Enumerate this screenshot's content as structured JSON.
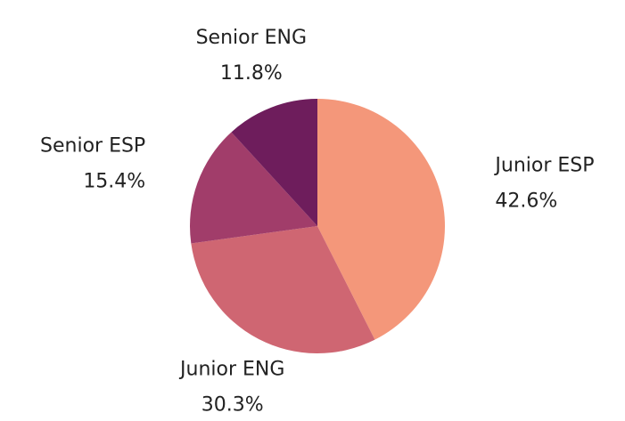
{
  "chart_data": {
    "type": "pie",
    "categories": [
      "Junior ESP",
      "Junior ENG",
      "Senior ESP",
      "Senior ENG"
    ],
    "values": [
      42.6,
      30.3,
      15.4,
      11.8
    ],
    "value_labels": [
      "42.6%",
      "30.3%",
      "15.4%",
      "11.8%"
    ],
    "colors": [
      "#f4977a",
      "#cf6672",
      "#a13d6a",
      "#6e1d5c"
    ]
  }
}
